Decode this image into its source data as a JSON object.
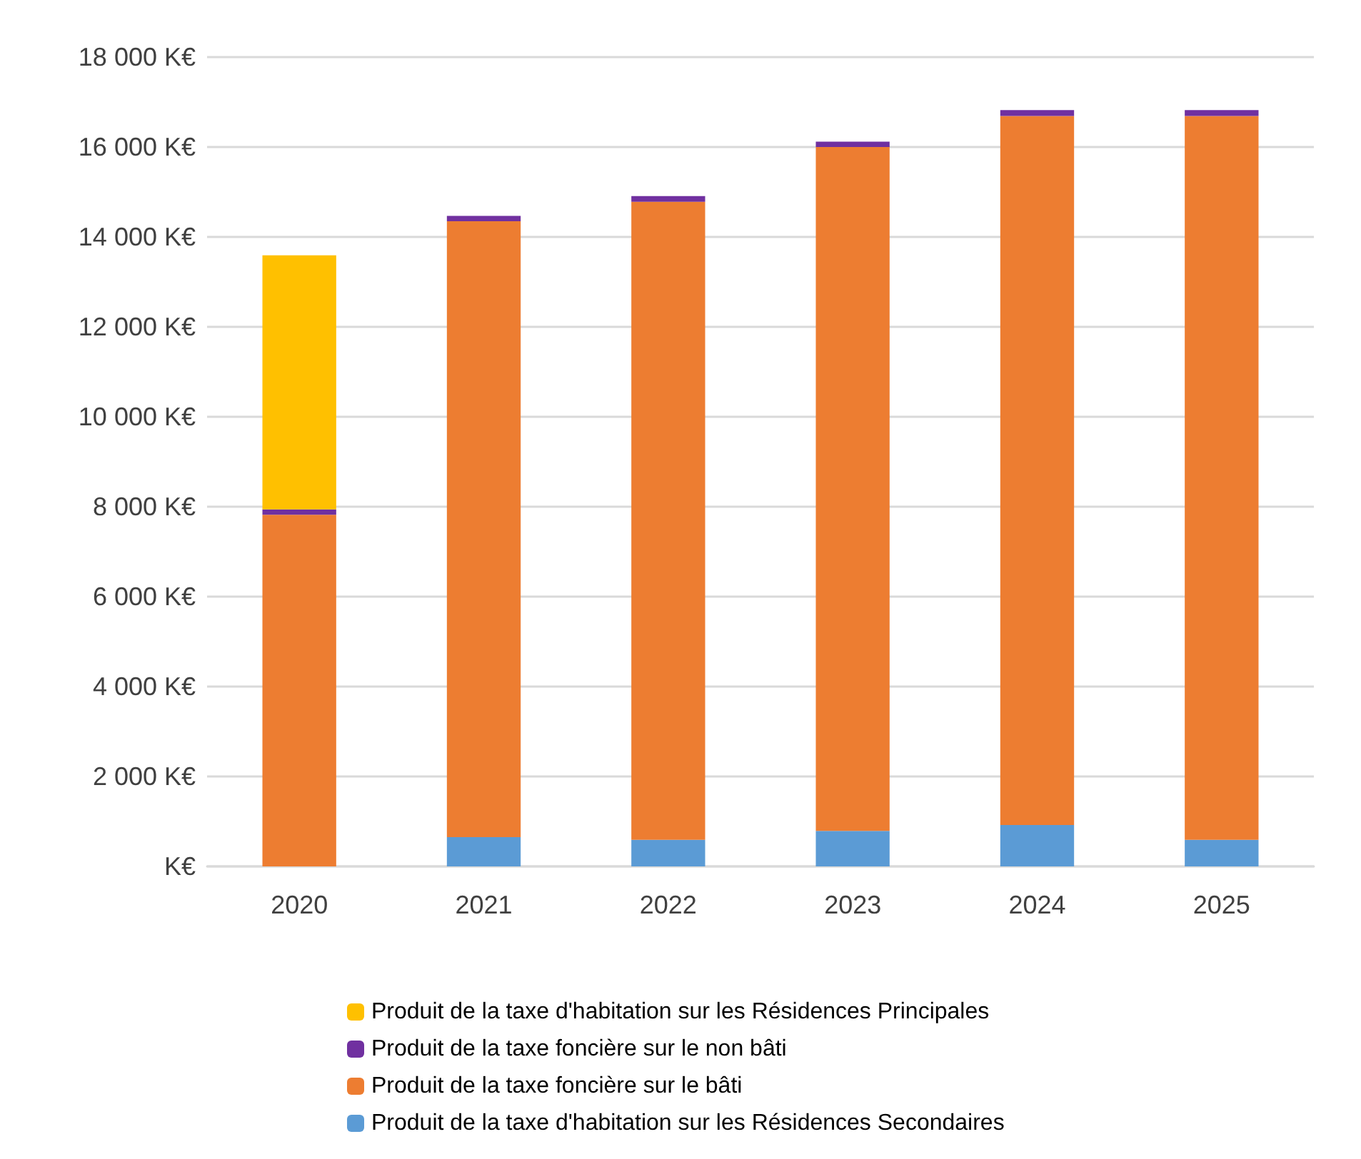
{
  "chart_data": {
    "type": "bar",
    "stacked": true,
    "categories": [
      "2020",
      "2021",
      "2022",
      "2023",
      "2024",
      "2025"
    ],
    "series": [
      {
        "name": "Produit de la taxe d'habitation sur les Résidences Secondaires",
        "color": "#5b9bd5",
        "values": [
          0,
          650,
          590,
          790,
          920,
          590
        ]
      },
      {
        "name": "Produit de la taxe foncière sur le bâti",
        "color": "#ed7d31",
        "values": [
          7820,
          13700,
          14190,
          15210,
          15770,
          16100
        ]
      },
      {
        "name": "Produit de la taxe foncière sur le non bâti",
        "color": "#7030a0",
        "values": [
          120,
          120,
          130,
          120,
          130,
          130
        ]
      },
      {
        "name": "Produit de la taxe d'habitation sur les Résidences Principales",
        "color": "#ffc000",
        "values": [
          5650,
          null,
          null,
          null,
          null,
          null
        ]
      }
    ],
    "ylim": [
      0,
      18000
    ],
    "yticks": [
      {
        "value": 0,
        "label": "K€"
      },
      {
        "value": 2000,
        "label": "2 000 K€"
      },
      {
        "value": 4000,
        "label": "4 000 K€"
      },
      {
        "value": 6000,
        "label": "6 000 K€"
      },
      {
        "value": 8000,
        "label": "8 000 K€"
      },
      {
        "value": 10000,
        "label": "10 000 K€"
      },
      {
        "value": 12000,
        "label": "12 000 K€"
      },
      {
        "value": 14000,
        "label": "14 000 K€"
      },
      {
        "value": 16000,
        "label": "16 000 K€"
      },
      {
        "value": 18000,
        "label": "18 000 K€"
      }
    ],
    "grid": "y",
    "legend": "bottom"
  }
}
